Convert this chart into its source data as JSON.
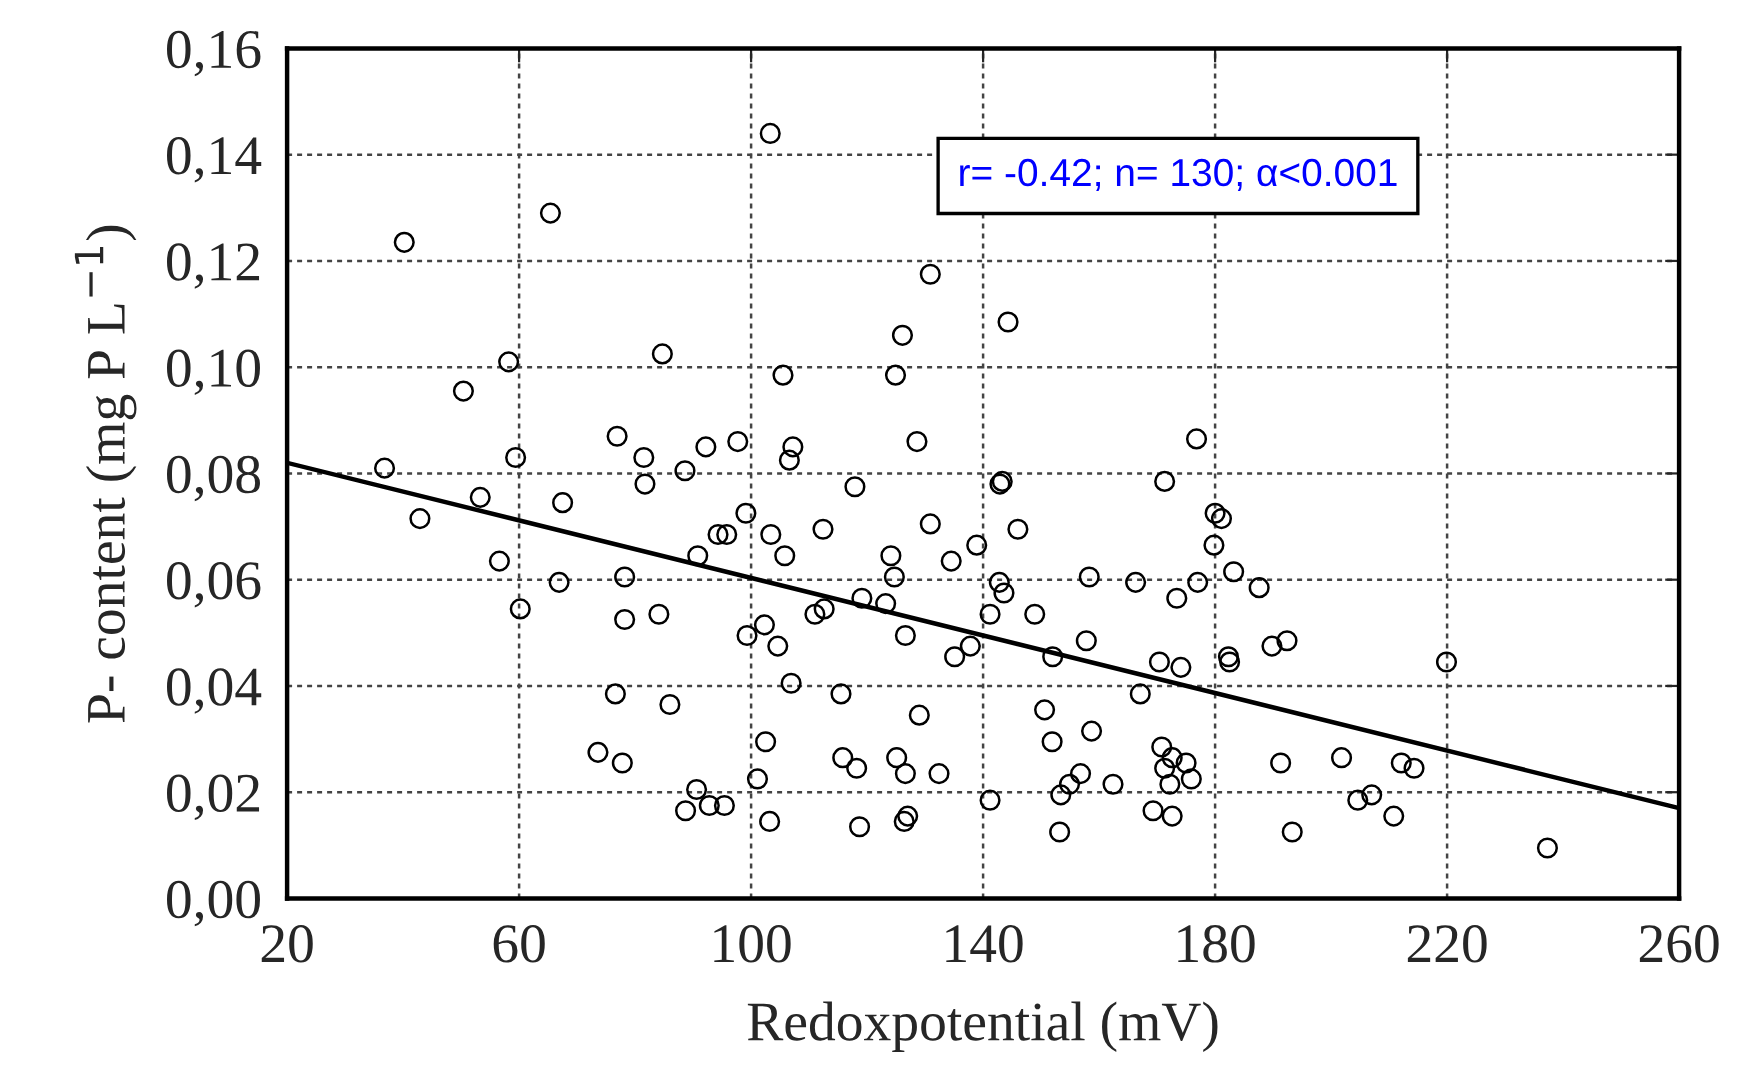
{
  "chart_data": {
    "type": "scatter",
    "xlabel": "Redoxpotential (mV)",
    "ylabel": "P- content (mg P L$^{−1}$)",
    "annotations": [
      "r= -0.42; n= 130; α<0.001"
    ],
    "xlim": [
      20,
      260
    ],
    "xticks": [
      20,
      60,
      100,
      140,
      180,
      220,
      260
    ],
    "ylim": [
      0,
      0.16
    ],
    "yticks": [
      {
        "value": 0,
        "label": "0,00"
      },
      {
        "value": 0.02,
        "label": "0,02"
      },
      {
        "value": 0.04,
        "label": "0,04"
      },
      {
        "value": 0.06,
        "label": "0,06"
      },
      {
        "value": 0.08,
        "label": "0,08"
      },
      {
        "value": 0.1,
        "label": "0,10"
      },
      {
        "value": 0.12,
        "label": "0,12"
      },
      {
        "value": 0.14,
        "label": "0,14"
      },
      {
        "value": 0.16,
        "label": "0,16"
      }
    ],
    "grid": true,
    "marker": "circle",
    "series": [
      {
        "color": "#000000",
        "x": [
          103.3,
          65.4,
          40.2,
          130.9,
          126.1,
          58.2,
          84.7,
          50.4,
          105.5,
          124.9,
          76.9,
          128.6,
          97.7,
          92.2,
          107.2,
          106.6,
          36.8,
          59.4,
          81.5,
          88.6,
          81.7,
          53.3,
          67.5,
          42.9,
          117.9,
          99.1,
          94.3,
          95.8,
          103.4,
          112.4,
          130.9,
          56.6,
          90.8,
          105.8,
          124.1,
          134.5,
          138.9,
          66.9,
          78.2,
          124.7,
          60.2,
          78.2,
          84.1,
          119.1,
          123.2,
          111.0,
          112.6,
          102.3,
          99.3,
          104.6,
          126.6,
          135.1,
          137.8,
          141.2,
          106.9,
          115.5,
          76.6,
          86.0,
          129.0,
          73.6,
          77.8,
          102.5,
          115.8,
          118.2,
          125.1,
          126.6,
          132.4,
          101.1,
          90.6,
          88.7,
          92.8,
          95.4,
          103.2,
          118.7,
          127.0,
          126.4,
          141.2,
          142.9,
          143.3,
          142.8,
          143.6,
          171.3,
          146.0,
          180.0,
          181.1,
          179.8,
          158.3,
          166.3,
          177.0,
          173.4,
          183.2,
          187.6,
          148.9,
          152.0,
          157.8,
          170.4,
          174.1,
          182.3,
          182.5,
          189.8,
          192.4,
          219.9,
          167.1,
          150.6,
          151.9,
          158.7,
          170.8,
          172.6,
          171.3,
          175.0,
          172.2,
          175.9,
          156.8,
          154.9,
          153.4,
          162.4,
          153.2,
          169.3,
          172.6,
          191.3,
          193.3,
          201.8,
          204.6,
          207.0,
          210.8,
          212.1,
          214.3,
          237.3,
          144.3,
          176.8
        ],
        "values": [
          0.144,
          0.129,
          0.1235,
          0.1175,
          0.106,
          0.101,
          0.1025,
          0.0955,
          0.0985,
          0.0985,
          0.087,
          0.086,
          0.086,
          0.085,
          0.085,
          0.0825,
          0.081,
          0.083,
          0.083,
          0.0805,
          0.078,
          0.0755,
          0.0745,
          0.0715,
          0.0775,
          0.0725,
          0.0685,
          0.0685,
          0.0685,
          0.0695,
          0.0705,
          0.0635,
          0.0645,
          0.0645,
          0.0645,
          0.0635,
          0.0665,
          0.0595,
          0.0605,
          0.0605,
          0.0545,
          0.0525,
          0.0535,
          0.0565,
          0.0555,
          0.0535,
          0.0545,
          0.0515,
          0.0495,
          0.0475,
          0.0495,
          0.0455,
          0.0475,
          0.0535,
          0.0405,
          0.0385,
          0.0385,
          0.0365,
          0.0345,
          0.0275,
          0.0255,
          0.0295,
          0.0265,
          0.0245,
          0.0265,
          0.0235,
          0.0235,
          0.0225,
          0.0205,
          0.0165,
          0.0175,
          0.0175,
          0.0145,
          0.0135,
          0.0155,
          0.0145,
          0.0185,
          0.078,
          0.0785,
          0.0595,
          0.0575,
          0.0785,
          0.0695,
          0.0725,
          0.0715,
          0.0665,
          0.0605,
          0.0595,
          0.0595,
          0.0565,
          0.0615,
          0.0585,
          0.0535,
          0.0455,
          0.0485,
          0.0445,
          0.0435,
          0.0455,
          0.0445,
          0.0475,
          0.0485,
          0.0445,
          0.0385,
          0.0355,
          0.0295,
          0.0315,
          0.0285,
          0.0265,
          0.0245,
          0.0255,
          0.0215,
          0.0225,
          0.0235,
          0.0215,
          0.0195,
          0.0215,
          0.0125,
          0.0165,
          0.0155,
          0.0255,
          0.0125,
          0.0265,
          0.0185,
          0.0195,
          0.0155,
          0.0255,
          0.0245,
          0.0095,
          0.1085,
          0.0865
        ]
      },
      {
        "type": "line",
        "color": "#000000",
        "marker": "none",
        "line_style": "solid",
        "x": [
          20,
          260
        ],
        "values": [
          0.082,
          0.017
        ]
      }
    ]
  }
}
